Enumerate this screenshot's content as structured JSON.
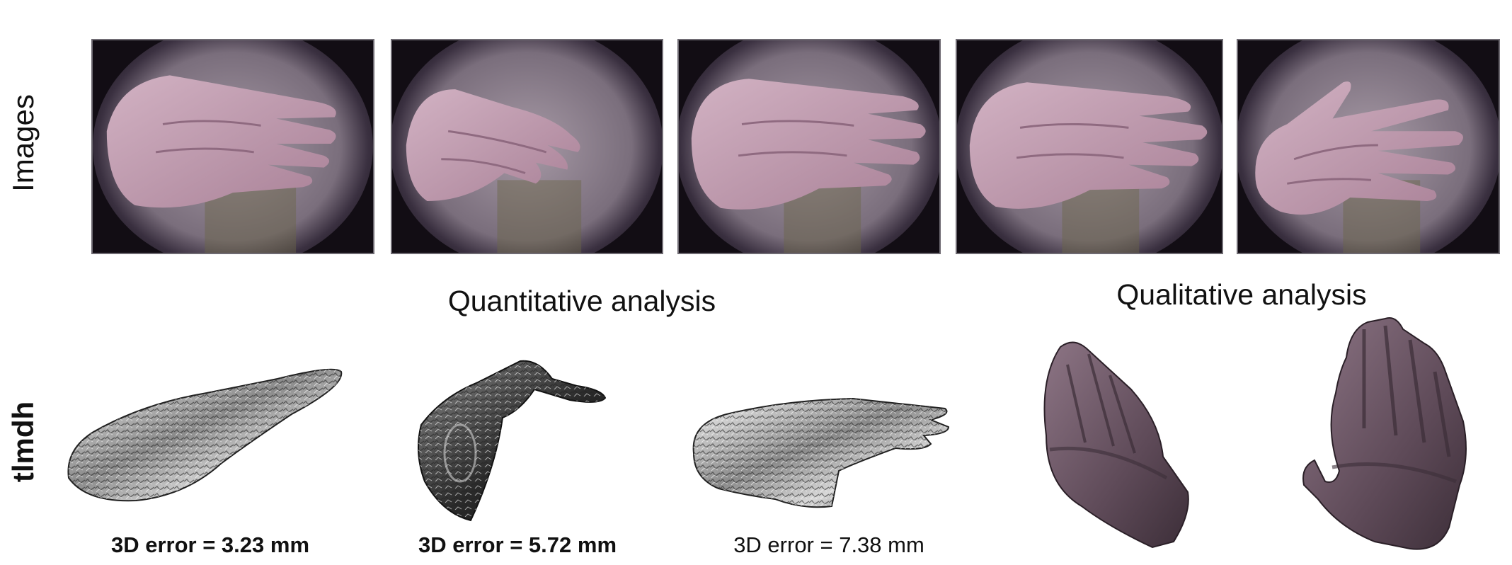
{
  "row_labels": {
    "images": "Images",
    "method": "tlmdh"
  },
  "sections": {
    "quantitative": "Quantitative analysis",
    "qualitative": "Qualitative analysis"
  },
  "captions": [
    "3D error = 3.23 mm",
    "3D error = 5.72 mm",
    "3D error = 7.38 mm"
  ],
  "photos": [
    {
      "description": "hand-photo-1"
    },
    {
      "description": "hand-photo-2"
    },
    {
      "description": "hand-photo-3"
    },
    {
      "description": "hand-photo-4"
    },
    {
      "description": "hand-photo-5"
    }
  ]
}
